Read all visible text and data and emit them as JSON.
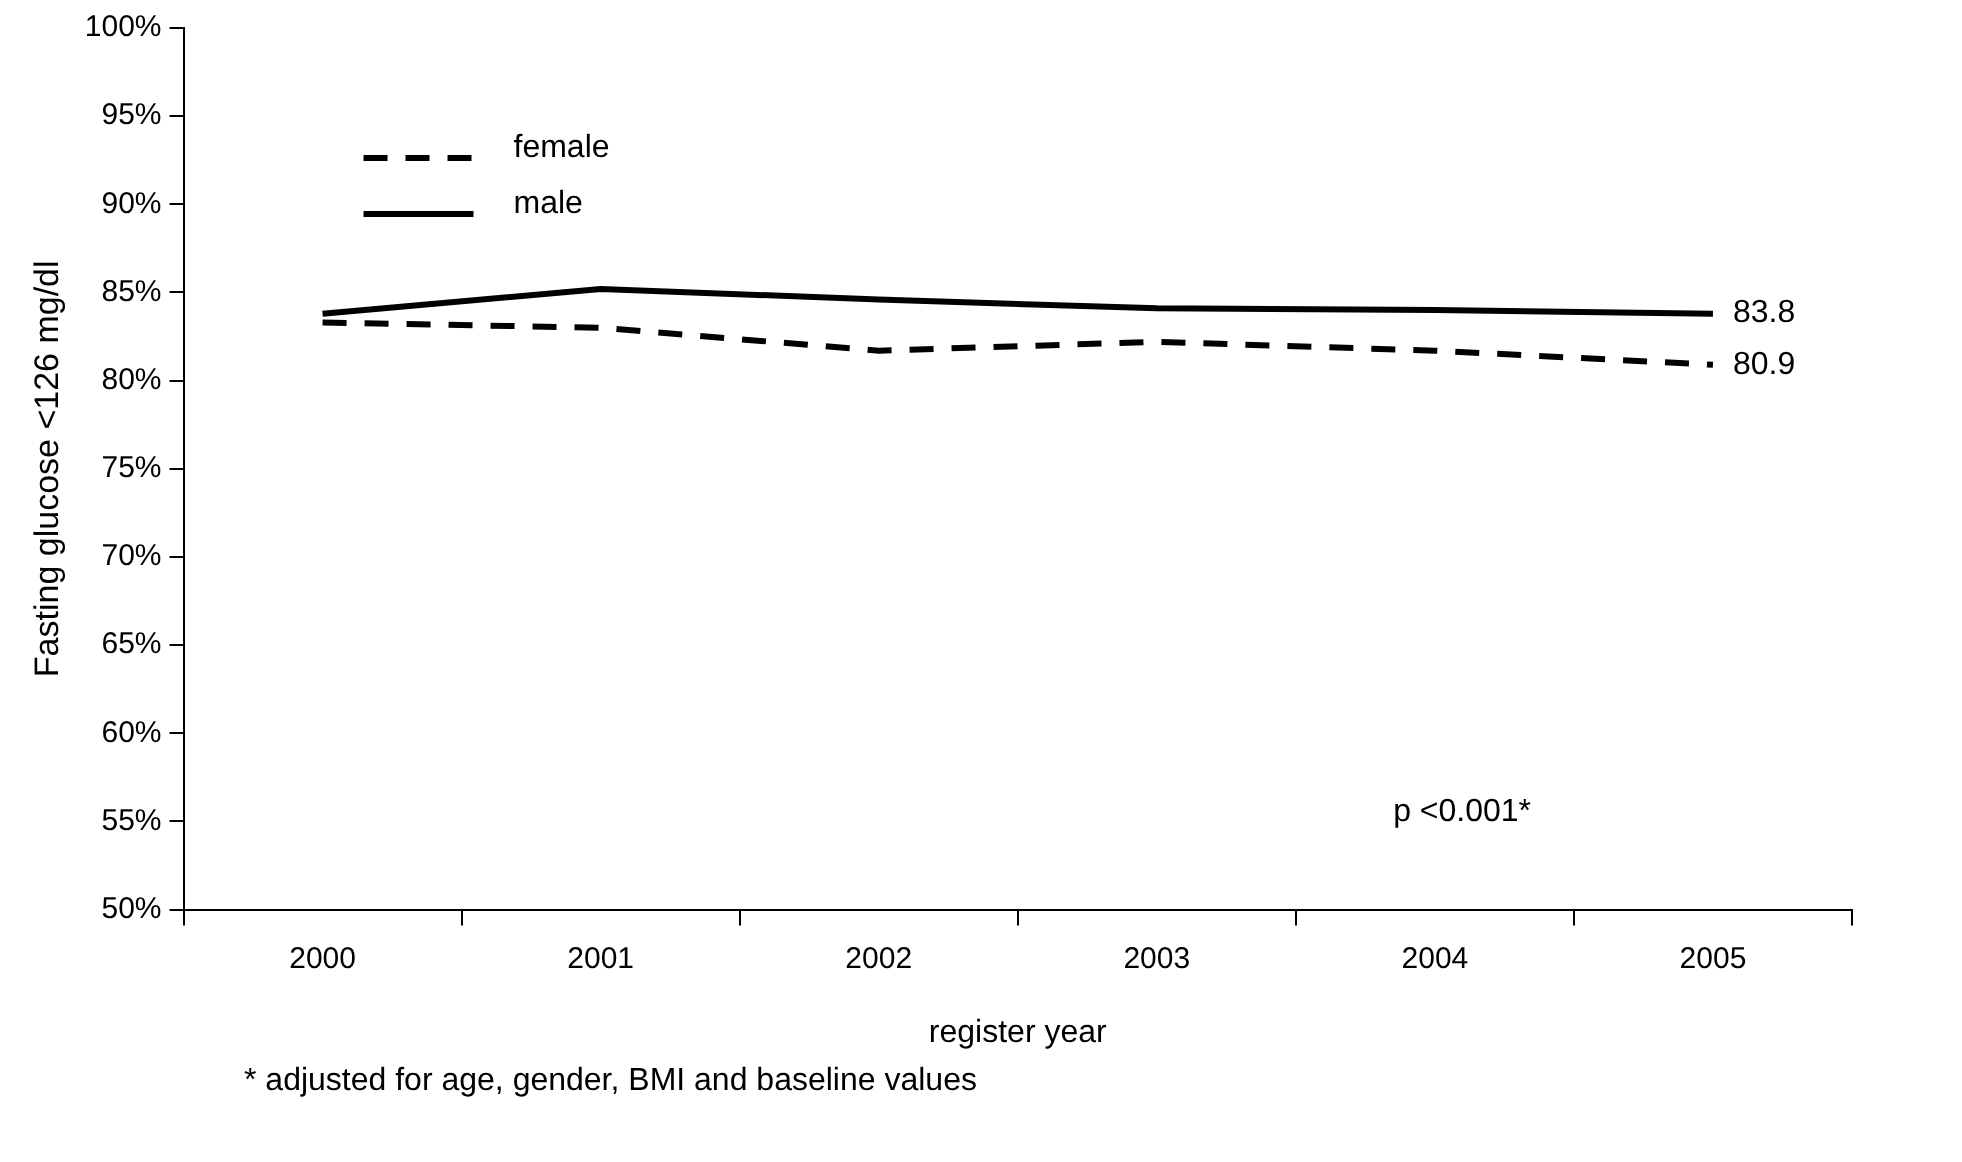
{
  "chart_data": {
    "type": "line",
    "ylabel": "Fasting glucose <126 mg/dl",
    "xlabel": "register year",
    "categories": [
      "2000",
      "2001",
      "2002",
      "2003",
      "2004",
      "2005"
    ],
    "series": [
      {
        "name": "female",
        "color": "#000000",
        "line_style": "dashed",
        "values": [
          83.3,
          83.0,
          81.7,
          82.2,
          81.7,
          80.9
        ],
        "value_labels": [
          null,
          null,
          null,
          null,
          null,
          "80.9"
        ]
      },
      {
        "name": "male",
        "color": "#000000",
        "line_style": "solid",
        "values": [
          83.8,
          85.2,
          84.6,
          84.1,
          84.0,
          83.8
        ],
        "value_labels": [
          null,
          null,
          null,
          null,
          null,
          "83.8"
        ]
      }
    ],
    "ylim": [
      50,
      100
    ],
    "yticks": [
      {
        "value": 50,
        "label": "50%"
      },
      {
        "value": 55,
        "label": "55%"
      },
      {
        "value": 60,
        "label": "60%"
      },
      {
        "value": 65,
        "label": "65%"
      },
      {
        "value": 70,
        "label": "70%"
      },
      {
        "value": 75,
        "label": "75%"
      },
      {
        "value": 80,
        "label": "80%"
      },
      {
        "value": 85,
        "label": "85%"
      },
      {
        "value": 90,
        "label": "90%"
      },
      {
        "value": 95,
        "label": "95%"
      },
      {
        "value": 100,
        "label": "100%"
      }
    ],
    "grid": false,
    "legend": "top left",
    "marker": "none",
    "annotations": [
      "p <0.001*",
      "* adjusted for age, gender, BMI and baseline values"
    ]
  }
}
